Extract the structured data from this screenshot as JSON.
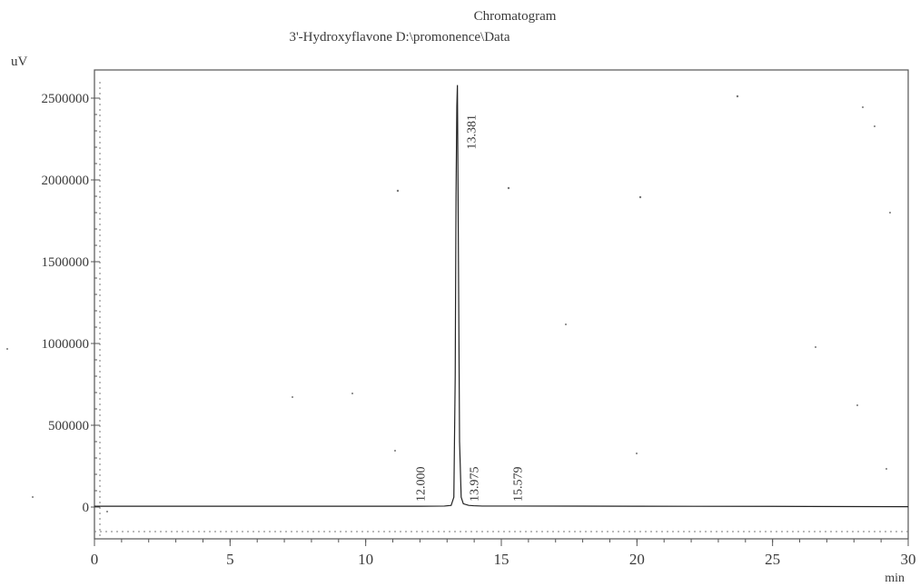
{
  "chart_data": {
    "type": "line",
    "title": "Chromatogram",
    "subtitle": "3'-Hydroxyflavone D:\\promonence\\Data",
    "ylabel": "uV",
    "xlabel": "min",
    "xlim": [
      0,
      30
    ],
    "ylim": [
      -150000,
      2700000
    ],
    "x_ticks": [
      0,
      5,
      10,
      15,
      20,
      25,
      30
    ],
    "x_tick_labels": [
      "0",
      "5",
      "10",
      "15",
      "20",
      "25",
      "30"
    ],
    "y_ticks": [
      0,
      500000,
      1000000,
      1500000,
      2000000,
      2500000
    ],
    "y_tick_labels": [
      "0",
      "500000",
      "1000000",
      "1500000",
      "2000000",
      "2500000"
    ],
    "grid": false,
    "legend": "none",
    "series": [
      {
        "x": [
          0,
          12.0,
          12.9,
          13.15,
          13.25,
          13.3,
          13.33,
          13.36,
          13.381,
          13.42,
          13.46,
          13.52,
          13.6,
          13.8,
          13.975,
          14.3,
          15.579,
          20,
          25,
          30
        ],
        "y": [
          5000,
          5000,
          6000,
          10000,
          60000,
          800000,
          1900000,
          2450000,
          2580000,
          1500000,
          400000,
          60000,
          20000,
          10000,
          8000,
          6000,
          6000,
          5000,
          4000,
          2000
        ]
      }
    ],
    "peaks": [
      {
        "x": 12.0,
        "label": "12.000"
      },
      {
        "x": 13.381,
        "label": "13.381"
      },
      {
        "x": 13.975,
        "label": "13.975"
      },
      {
        "x": 15.579,
        "label": "15.579"
      }
    ],
    "colors": {
      "trace": "#222222",
      "frame": "#555555"
    }
  }
}
